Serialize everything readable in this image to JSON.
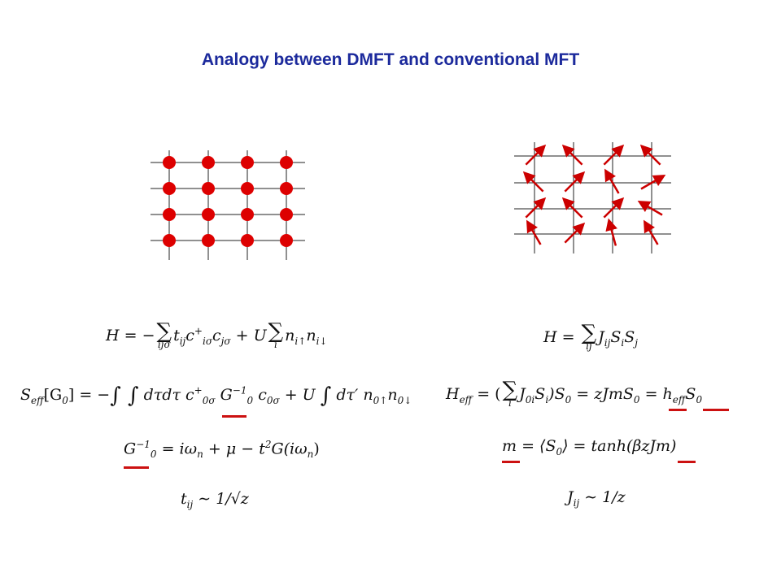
{
  "slide": {
    "title": "Analogy between DMFT and conventional MFT"
  },
  "lattices": {
    "left": {
      "kind": "dots",
      "rows": 4,
      "cols": 4,
      "color": "#dd0000"
    },
    "right": {
      "kind": "spins",
      "rows": 4,
      "cols": 4,
      "color": "#cc0000",
      "arrow_angles_deg": [
        [
          -45,
          -135,
          -45,
          -135
        ],
        [
          -135,
          -45,
          -120,
          -30
        ],
        [
          -45,
          -135,
          -45,
          -150
        ],
        [
          -120,
          -45,
          -105,
          -120
        ]
      ]
    }
  },
  "equations": {
    "dmft": {
      "hamiltonian": {
        "lhs": "H",
        "eq": " = −",
        "sum1_lim": "ijσ",
        "t": "t",
        "t_sub": "ij",
        "c1": "c",
        "c1_sub": "iσ",
        "c1_sup": "+",
        "c2": "c",
        "c2_sub": "jσ",
        "plus": " + ",
        "U": "U",
        "sum2_lim": "i",
        "n1": "n",
        "n1_sub": "i↑",
        "n2": "n",
        "n2_sub": "i↓"
      },
      "action": {
        "S": "S",
        "S_sub": "eff",
        "arg": "[G",
        "arg_sub": "0",
        "arg_close": "] = −",
        "ints": "∫ ∫",
        "dtau": " dτdτ ",
        "c1": "c",
        "c1_sub": "0σ",
        "c1_sup": "+",
        "G": "G",
        "G_sub": "0",
        "G_sup": "−1",
        "c2": "c",
        "c2_sub": "0σ",
        "plus": " + ",
        "U": "U",
        "int3": "∫",
        "dtau2": " dτ′ ",
        "n1": "n",
        "n1_sub": "0↑",
        "n2": "n",
        "n2_sub": "0↓"
      },
      "weiss": {
        "G": "G",
        "G_sub": "0",
        "G_sup": "−1",
        "rhs": " = iω",
        "rhs_sub": "n",
        "rest": " + μ − t",
        "sq": "2",
        "tail": "G(iω",
        "tail_sub": "n",
        "close": ")"
      },
      "scaling": {
        "t": "t",
        "t_sub": "ij",
        "rest": " ∼ 1/√z"
      }
    },
    "mft": {
      "hamiltonian": {
        "lhs": "H",
        "eq": " = ",
        "sum_lim": "ij",
        "J": "J",
        "J_sub": "ij",
        "S1": "S",
        "S1_sub": "i",
        "S2": "S",
        "S2_sub": "j"
      },
      "effective": {
        "H": "H",
        "H_sub": "eff",
        "eq": " = (",
        "sum_lim": "i",
        "J": "J",
        "J_sub": "0i",
        "S": "S",
        "S_sub": "i",
        "mid": ")S",
        "mid_sub": "0",
        "eq2": " = zJmS",
        "eq2_sub": "0",
        "eq3": " = h",
        "eq3_sub": "eff",
        "end": "S",
        "end_sub": "0"
      },
      "selfconsistency": {
        "m": "m",
        "eq": " = ⟨S",
        "eq_sub": "0",
        "rest": "⟩ = tanh(βzJm)"
      },
      "scaling": {
        "J": "J",
        "J_sub": "ij",
        "rest": " ∼ 1/z"
      }
    }
  },
  "highlight_color": "#cc1111"
}
